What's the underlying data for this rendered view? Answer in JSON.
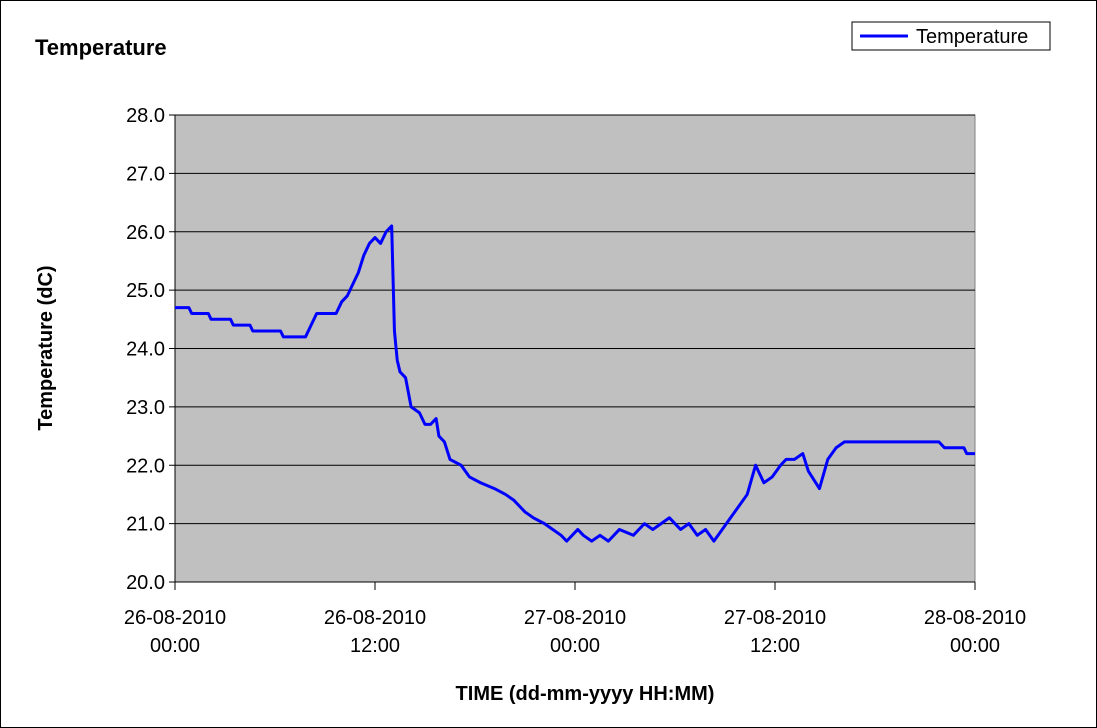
{
  "chart_data": {
    "type": "line",
    "title": "Temperature",
    "x_label": "TIME (dd-mm-yyyy HH:MM)",
    "y_label": "Temperature (dC)",
    "legend": "upper right",
    "grid": true,
    "xlim": [
      "2010-08-26T00:00",
      "2010-08-28T00:00"
    ],
    "xticks": [
      {
        "value": "2010-08-26T00:00",
        "label": "26-08-2010\n00:00"
      },
      {
        "value": "2010-08-26T12:00",
        "label": "26-08-2010\n12:00"
      },
      {
        "value": "2010-08-27T00:00",
        "label": "27-08-2010\n00:00"
      },
      {
        "value": "2010-08-27T12:00",
        "label": "27-08-2010\n12:00"
      },
      {
        "value": "2010-08-28T00:00",
        "label": "28-08-2010\n00:00"
      }
    ],
    "ylim": [
      20,
      28
    ],
    "yticks": [
      {
        "value": 20,
        "label": "20.0"
      },
      {
        "value": 21,
        "label": "21.0"
      },
      {
        "value": 22,
        "label": "22.0"
      },
      {
        "value": 23,
        "label": "23.0"
      },
      {
        "value": 24,
        "label": "24.0"
      },
      {
        "value": 25,
        "label": "25.0"
      },
      {
        "value": 26,
        "label": "26.0"
      },
      {
        "value": 27,
        "label": "27.0"
      },
      {
        "value": 28,
        "label": "28.0"
      }
    ],
    "x": [
      "2010-08-26T00:00",
      "2010-08-26T00:50",
      "2010-08-26T01:00",
      "2010-08-26T02:00",
      "2010-08-26T02:10",
      "2010-08-26T03:20",
      "2010-08-26T03:30",
      "2010-08-26T04:30",
      "2010-08-26T04:40",
      "2010-08-26T06:20",
      "2010-08-26T06:30",
      "2010-08-26T07:50",
      "2010-08-26T08:10",
      "2010-08-26T08:30",
      "2010-08-26T09:40",
      "2010-08-26T10:00",
      "2010-08-26T10:20",
      "2010-08-26T10:40",
      "2010-08-26T11:00",
      "2010-08-26T11:20",
      "2010-08-26T11:40",
      "2010-08-26T12:00",
      "2010-08-26T12:20",
      "2010-08-26T12:40",
      "2010-08-26T13:00",
      "2010-08-26T13:10",
      "2010-08-26T13:20",
      "2010-08-26T13:30",
      "2010-08-26T13:50",
      "2010-08-26T14:10",
      "2010-08-26T14:40",
      "2010-08-26T15:00",
      "2010-08-26T15:20",
      "2010-08-26T15:40",
      "2010-08-26T15:50",
      "2010-08-26T16:10",
      "2010-08-26T16:30",
      "2010-08-26T17:10",
      "2010-08-26T17:40",
      "2010-08-26T18:20",
      "2010-08-26T19:10",
      "2010-08-26T19:50",
      "2010-08-26T20:20",
      "2010-08-26T21:00",
      "2010-08-26T21:30",
      "2010-08-26T22:10",
      "2010-08-26T22:40",
      "2010-08-26T23:10",
      "2010-08-26T23:30",
      "2010-08-27T00:10",
      "2010-08-27T00:30",
      "2010-08-27T01:00",
      "2010-08-27T01:30",
      "2010-08-27T02:00",
      "2010-08-27T02:40",
      "2010-08-27T03:30",
      "2010-08-27T04:10",
      "2010-08-27T04:40",
      "2010-08-27T05:40",
      "2010-08-27T06:20",
      "2010-08-27T06:50",
      "2010-08-27T07:20",
      "2010-08-27T07:50",
      "2010-08-27T08:20",
      "2010-08-27T08:50",
      "2010-08-27T09:20",
      "2010-08-27T09:50",
      "2010-08-27T10:20",
      "2010-08-27T10:50",
      "2010-08-27T11:20",
      "2010-08-27T11:50",
      "2010-08-27T12:20",
      "2010-08-27T12:40",
      "2010-08-27T13:10",
      "2010-08-27T13:40",
      "2010-08-27T14:00",
      "2010-08-27T14:40",
      "2010-08-27T15:10",
      "2010-08-27T15:40",
      "2010-08-27T16:10",
      "2010-08-27T21:50",
      "2010-08-27T22:10",
      "2010-08-27T23:20",
      "2010-08-27T23:30",
      "2010-08-28T00:00"
    ],
    "series": [
      {
        "name": "Temperature",
        "color": "#0000ff",
        "values": [
          24.7,
          24.7,
          24.6,
          24.6,
          24.5,
          24.5,
          24.4,
          24.4,
          24.3,
          24.3,
          24.2,
          24.2,
          24.4,
          24.6,
          24.6,
          24.8,
          24.9,
          25.1,
          25.3,
          25.6,
          25.8,
          25.9,
          25.8,
          26.0,
          26.1,
          24.3,
          23.8,
          23.6,
          23.5,
          23.0,
          22.9,
          22.7,
          22.7,
          22.8,
          22.5,
          22.4,
          22.1,
          22.0,
          21.8,
          21.7,
          21.6,
          21.5,
          21.4,
          21.2,
          21.1,
          21.0,
          20.9,
          20.8,
          20.7,
          20.9,
          20.8,
          20.7,
          20.8,
          20.7,
          20.9,
          20.8,
          21.0,
          20.9,
          21.1,
          20.9,
          21.0,
          20.8,
          20.9,
          20.7,
          20.9,
          21.1,
          21.3,
          21.5,
          22.0,
          21.7,
          21.8,
          22.0,
          22.1,
          22.1,
          22.2,
          21.9,
          21.6,
          22.1,
          22.3,
          22.4,
          22.4,
          22.3,
          22.3,
          22.2,
          22.2
        ]
      }
    ]
  }
}
